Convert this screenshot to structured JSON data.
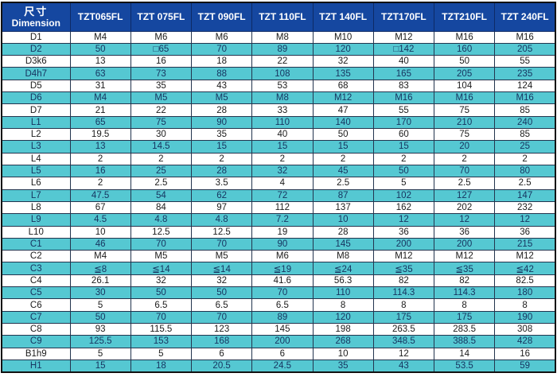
{
  "table": {
    "header": {
      "dimension_cn": "尺寸",
      "dimension_en": "Dimension",
      "models": [
        "TZT065FL",
        "TZT 075FL",
        "TZT 090FL",
        "TZT 110FL",
        "TZT 140FL",
        "TZT170FL",
        "TZT210FL",
        "TZT 240FL"
      ]
    },
    "rows": [
      {
        "label": "D1",
        "values": [
          "M4",
          "M6",
          "M6",
          "M8",
          "M10",
          "M12",
          "M16",
          "M16"
        ]
      },
      {
        "label": "D2",
        "values": [
          "50",
          "□65",
          "70",
          "89",
          "120",
          "□142",
          "160",
          "205"
        ]
      },
      {
        "label": "D3k6",
        "values": [
          "13",
          "16",
          "18",
          "22",
          "32",
          "40",
          "50",
          "55"
        ]
      },
      {
        "label": "D4h7",
        "values": [
          "63",
          "73",
          "88",
          "108",
          "135",
          "165",
          "205",
          "235"
        ]
      },
      {
        "label": "D5",
        "values": [
          "31",
          "35",
          "43",
          "53",
          "68",
          "83",
          "104",
          "124"
        ]
      },
      {
        "label": "D6",
        "values": [
          "M4",
          "M5",
          "M5",
          "M8",
          "M12",
          "M16",
          "M16",
          "M16"
        ]
      },
      {
        "label": "D7",
        "values": [
          "21",
          "22",
          "28",
          "33",
          "47",
          "55",
          "75",
          "85"
        ]
      },
      {
        "label": "L1",
        "values": [
          "65",
          "75",
          "90",
          "110",
          "140",
          "170",
          "210",
          "240"
        ]
      },
      {
        "label": "L2",
        "values": [
          "19.5",
          "30",
          "35",
          "40",
          "50",
          "60",
          "75",
          "85"
        ]
      },
      {
        "label": "L3",
        "values": [
          "13",
          "14.5",
          "15",
          "15",
          "15",
          "15",
          "20",
          "25"
        ]
      },
      {
        "label": "L4",
        "values": [
          "2",
          "2",
          "2",
          "2",
          "2",
          "2",
          "2",
          "2"
        ]
      },
      {
        "label": "L5",
        "values": [
          "16",
          "25",
          "28",
          "32",
          "45",
          "50",
          "70",
          "80"
        ]
      },
      {
        "label": "L6",
        "values": [
          "2",
          "2.5",
          "3.5",
          "4",
          "2.5",
          "5",
          "2.5",
          "2.5"
        ]
      },
      {
        "label": "L7",
        "values": [
          "47.5",
          "54",
          "62",
          "72",
          "87",
          "102",
          "127",
          "147"
        ]
      },
      {
        "label": "L8",
        "values": [
          "67",
          "84",
          "97",
          "112",
          "137",
          "162",
          "202",
          "232"
        ]
      },
      {
        "label": "L9",
        "values": [
          "4.5",
          "4.8",
          "4.8",
          "7.2",
          "10",
          "12",
          "12",
          "12"
        ]
      },
      {
        "label": "L10",
        "values": [
          "10",
          "12.5",
          "12.5",
          "19",
          "28",
          "36",
          "36",
          "36"
        ]
      },
      {
        "label": "C1",
        "values": [
          "46",
          "70",
          "70",
          "90",
          "145",
          "200",
          "200",
          "215"
        ]
      },
      {
        "label": "C2",
        "values": [
          "M4",
          "M5",
          "M5",
          "M6",
          "M8",
          "M12",
          "M12",
          "M12"
        ]
      },
      {
        "label": "C3",
        "values": [
          "≦8",
          "≦14",
          "≦14",
          "≦19",
          "≦24",
          "≦35",
          "≦35",
          "≦42"
        ]
      },
      {
        "label": "C4",
        "values": [
          "26.1",
          "32",
          "32",
          "41.6",
          "56.3",
          "82",
          "82",
          "82.5"
        ]
      },
      {
        "label": "C5",
        "values": [
          "30",
          "50",
          "50",
          "70",
          "110",
          "114.3",
          "114.3",
          "180"
        ]
      },
      {
        "label": "C6",
        "values": [
          "5",
          "6.5",
          "6.5",
          "6.5",
          "8",
          "8",
          "8",
          "8"
        ]
      },
      {
        "label": "C7",
        "values": [
          "50",
          "70",
          "70",
          "89",
          "120",
          "175",
          "175",
          "190"
        ]
      },
      {
        "label": "C8",
        "values": [
          "93",
          "115.5",
          "123",
          "145",
          "198",
          "263.5",
          "283.5",
          "308"
        ]
      },
      {
        "label": "C9",
        "values": [
          "125.5",
          "153",
          "168",
          "200",
          "268",
          "348.5",
          "388.5",
          "428"
        ]
      },
      {
        "label": "B1h9",
        "values": [
          "5",
          "5",
          "6",
          "6",
          "10",
          "12",
          "14",
          "16"
        ]
      },
      {
        "label": "H1",
        "values": [
          "15",
          "18",
          "20.5",
          "24.5",
          "35",
          "43",
          "53.5",
          "59"
        ]
      }
    ]
  },
  "colors": {
    "header_bg": "#1547a0",
    "header_text": "#ffffff",
    "alt_row_bg": "#55c8d2",
    "row_bg": "#ffffff",
    "text_on_alt": "#16335f",
    "text_on_white": "#1b1b1b"
  }
}
